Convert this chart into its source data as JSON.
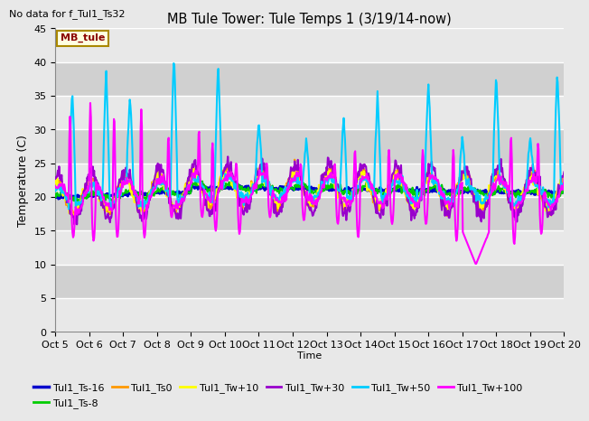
{
  "title": "MB Tule Tower: Tule Temps 1 (3/19/14-now)",
  "subtitle": "No data for f_Tul1_Ts32",
  "xlabel": "Time",
  "ylabel": "Temperature (C)",
  "ylim": [
    0,
    45
  ],
  "yticks": [
    0,
    5,
    10,
    15,
    20,
    25,
    30,
    35,
    40,
    45
  ],
  "xtick_labels": [
    "Oct 5",
    "Oct 6",
    "Oct 7",
    "Oct 8",
    "Oct 9",
    "Oct 10",
    "Oct 11",
    "Oct 12",
    "Oct 13",
    "Oct 14",
    "Oct 15",
    "Oct 16",
    "Oct 17",
    "Oct 18",
    "Oct 19",
    "Oct 20"
  ],
  "legend_label": "MB_tule",
  "series_labels": [
    "Tul1_Ts-16",
    "Tul1_Ts-8",
    "Tul1_Ts0",
    "Tul1_Tw+10",
    "Tul1_Tw+30",
    "Tul1_Tw+50",
    "Tul1_Tw+100"
  ],
  "series_colors": [
    "#0000cc",
    "#00cc00",
    "#ff9900",
    "#ffff00",
    "#9900cc",
    "#00ccff",
    "#ff00ff"
  ],
  "series_widths": [
    2.0,
    1.5,
    1.5,
    1.5,
    1.5,
    1.5,
    1.5
  ],
  "bg_color": "#e8e8e8",
  "plot_bg_light": "#e8e8e8",
  "plot_bg_dark": "#d0d0d0",
  "grid_color": "#ffffff",
  "n_points": 800
}
